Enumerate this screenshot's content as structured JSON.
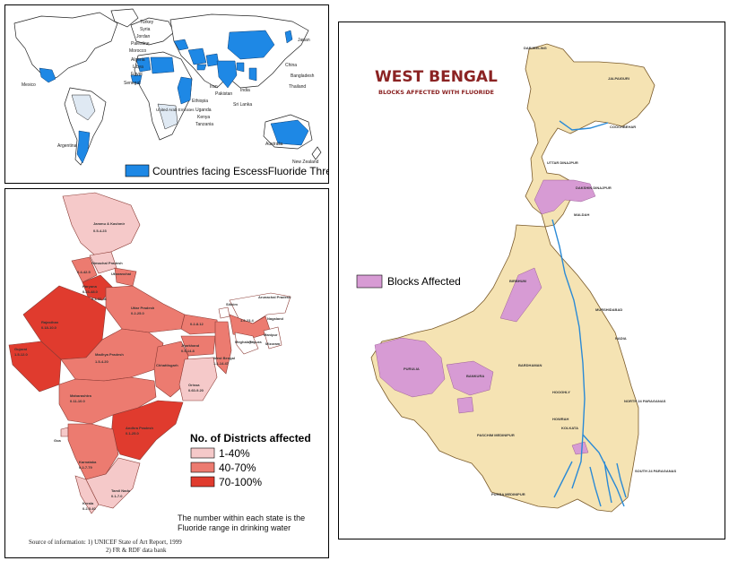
{
  "world": {
    "legend": "Countries facing EscessFluoride Threat",
    "legend_color": "#1e88e5",
    "labels": [
      "Turkey",
      "Syria",
      "Jordan",
      "Palestine",
      "Morocco",
      "Algeria",
      "Libya",
      "Egypt",
      "Senegal",
      "Mexico",
      "Argentina",
      "Japan",
      "China",
      "Bangladesh",
      "Thailand",
      "India",
      "Sri Lanka",
      "Pakistan",
      "Iran",
      "Ethiopia",
      "Uganda",
      "Kenya",
      "Tanzania",
      "United Arab Emirates",
      "Australia",
      "New Zealand"
    ]
  },
  "india": {
    "legend_title": "No. of Districts affected",
    "legend_items": [
      {
        "label": "1-40%",
        "color": "#f5c9c9"
      },
      {
        "label": "40-70%",
        "color": "#ec7b70"
      },
      {
        "label": "70-100%",
        "color": "#e03b2e"
      }
    ],
    "note_line1": "The number within each state is the",
    "note_line2": "Fluoride range in drinking water",
    "source_line1": "Source of information:  1)  UNICEF State of Art Report, 1999",
    "source_line2": "2)  FR & RDF data bank",
    "states": [
      {
        "name": "Jammu & Kashmir",
        "range": "0.5-4.23"
      },
      {
        "name": "Himachal Pradesh",
        "range": ""
      },
      {
        "name": "Punjab",
        "range": "0.4-42.5"
      },
      {
        "name": "Haryana",
        "range": "0.23-48.0"
      },
      {
        "name": "Uttaranchal",
        "range": "0.4-2.76"
      },
      {
        "name": "Delhi",
        "range": "0.3-32.46"
      },
      {
        "name": "Rajasthan",
        "range": "0.18-10.0"
      },
      {
        "name": "Uttar Pradesh",
        "range": "0.2-25.0"
      },
      {
        "name": "Bihar",
        "range": "0.2-8.12"
      },
      {
        "name": "Sikkim",
        "range": ""
      },
      {
        "name": "Arunachal Pradesh",
        "range": ""
      },
      {
        "name": "Assam",
        "range": "1.6-23.4"
      },
      {
        "name": "Meghalaya",
        "range": ""
      },
      {
        "name": "Nagaland",
        "range": ""
      },
      {
        "name": "Manipur",
        "range": ""
      },
      {
        "name": "Mizoram",
        "range": ""
      },
      {
        "name": "Tripura",
        "range": ""
      },
      {
        "name": "Gujarat",
        "range": "1.5-12.0"
      },
      {
        "name": "Madhya Pradesh",
        "range": "1.5-4.20"
      },
      {
        "name": "Jharkhand",
        "range": "0.5-14.8"
      },
      {
        "name": "West Bengal",
        "range": "1.1-14.47"
      },
      {
        "name": "Chhattisgarh",
        "range": ""
      },
      {
        "name": "Orissa",
        "range": "0.60-9.20"
      },
      {
        "name": "Maharashtra",
        "range": "0.11-10.0"
      },
      {
        "name": "Andhra Pradesh",
        "range": "0.1-25.0"
      },
      {
        "name": "Goa",
        "range": ""
      },
      {
        "name": "Karnataka",
        "range": "0.2-7.79"
      },
      {
        "name": "Tamil Nadu",
        "range": "0.1-7.0"
      },
      {
        "name": "Kerala",
        "range": "0.2-5.40"
      }
    ]
  },
  "westbengal": {
    "title": "WEST BENGAL",
    "subtitle": "BLOCKS AFFECTED WITH FLUORIDE",
    "legend": "Blocks Affected",
    "legend_color": "#d79bd4",
    "districts": [
      "DARJEELING",
      "JALPAIGURI",
      "COOCHBEHAR",
      "UTTAR DINAJPUR",
      "DAKSHIN DINAJPUR",
      "MALDAH",
      "BIRBHUM",
      "MURSHIDABAD",
      "NADIA",
      "PURULIA",
      "BANKURA",
      "BARDHAMAN",
      "HOOGHLY",
      "NORTH 24 PARAGANAS",
      "HOWRAH",
      "KOLKATA",
      "PASCHIM MEDINIPUR",
      "SOUTH 24 PARAGANAS",
      "PURBA MEDINIPUR"
    ]
  }
}
